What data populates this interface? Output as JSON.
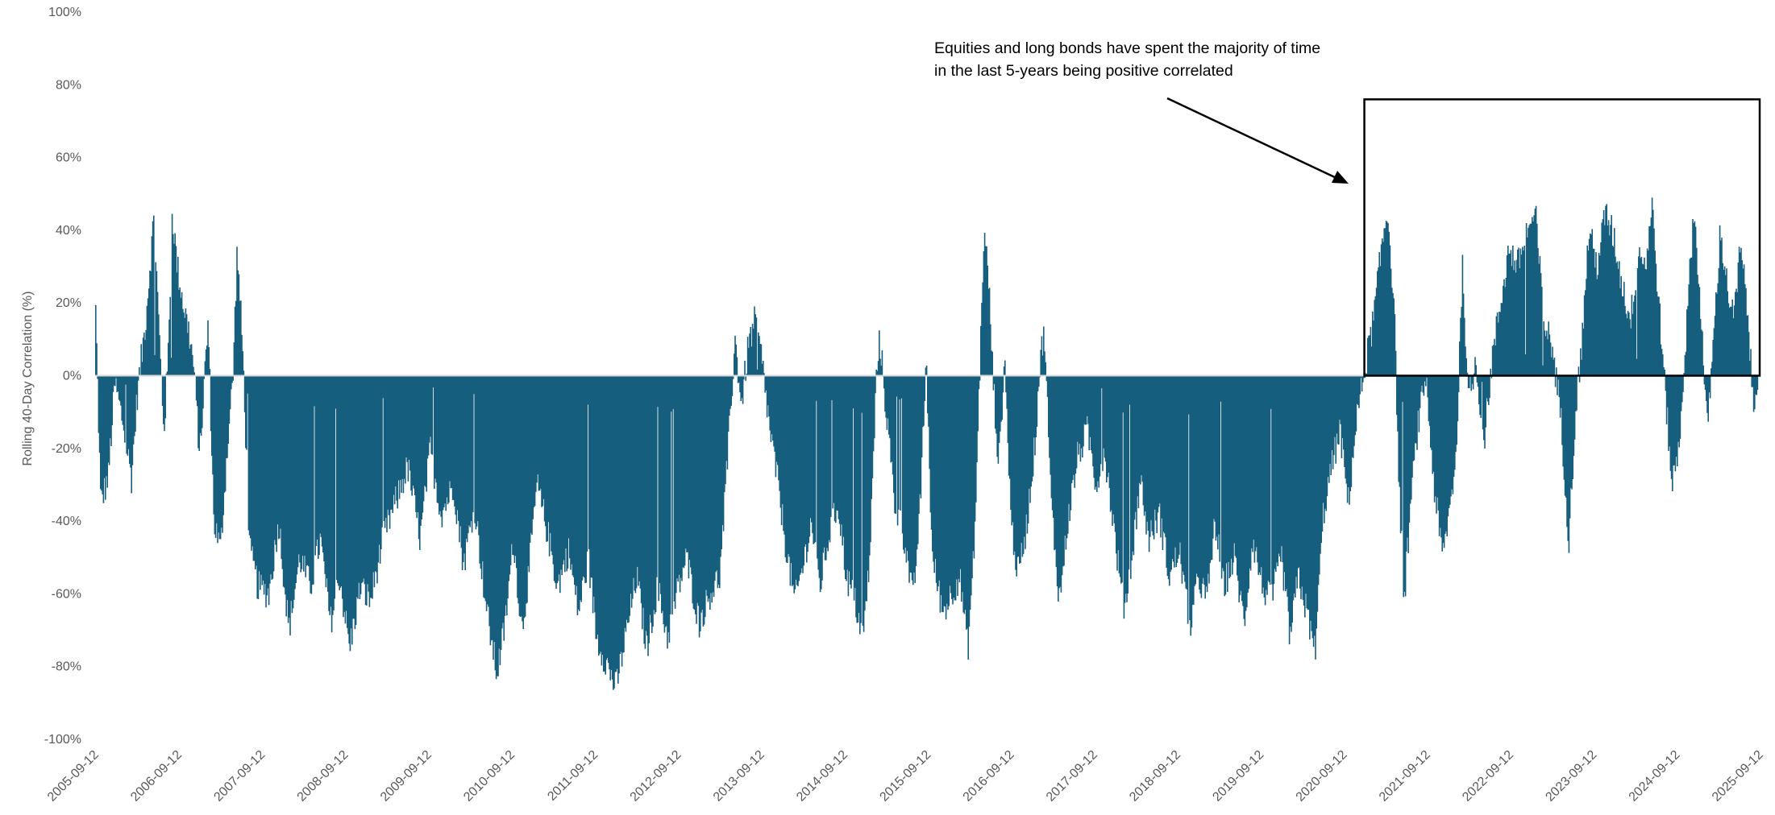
{
  "chart_data": {
    "type": "bar",
    "title": "",
    "xlabel": "",
    "ylabel": "Rolling 40-Day Correlation (%)",
    "ylim": [
      -100,
      100
    ],
    "yticks": [
      "100%",
      "80%",
      "60%",
      "40%",
      "20%",
      "0%",
      "-20%",
      "-40%",
      "-60%",
      "-80%",
      "-100%"
    ],
    "ytick_values": [
      100,
      80,
      60,
      40,
      20,
      0,
      -20,
      -40,
      -60,
      -80,
      -100
    ],
    "xticks": [
      "2005-09-12",
      "2006-09-12",
      "2007-09-12",
      "2008-09-12",
      "2009-09-12",
      "2010-09-12",
      "2011-09-12",
      "2012-09-12",
      "2013-09-12",
      "2014-09-12",
      "2015-09-12",
      "2016-09-12",
      "2017-09-12",
      "2018-09-12",
      "2019-09-12",
      "2020-09-12",
      "2021-09-12",
      "2022-09-12",
      "2023-09-12",
      "2024-09-12",
      "2025-09-12"
    ],
    "x_range": [
      2005.7,
      2025.7
    ],
    "bar_color": "#175E7E",
    "series": [
      {
        "name": "Rolling 40-Day Correlation",
        "points": [
          [
            2005.7,
            18
          ],
          [
            2005.76,
            -35
          ],
          [
            2005.85,
            -28
          ],
          [
            2005.93,
            -2
          ],
          [
            2006.02,
            -12
          ],
          [
            2006.13,
            -28
          ],
          [
            2006.2,
            -5
          ],
          [
            2006.3,
            15
          ],
          [
            2006.4,
            44
          ],
          [
            2006.47,
            8
          ],
          [
            2006.52,
            -15
          ],
          [
            2006.57,
            5
          ],
          [
            2006.62,
            45
          ],
          [
            2006.68,
            30
          ],
          [
            2006.75,
            20
          ],
          [
            2006.82,
            12
          ],
          [
            2006.88,
            2
          ],
          [
            2006.95,
            -22
          ],
          [
            2007.05,
            15
          ],
          [
            2007.12,
            -40
          ],
          [
            2007.2,
            -48
          ],
          [
            2007.28,
            -20
          ],
          [
            2007.35,
            0
          ],
          [
            2007.4,
            35
          ],
          [
            2007.47,
            5
          ],
          [
            2007.55,
            -48
          ],
          [
            2007.65,
            -58
          ],
          [
            2007.78,
            -60
          ],
          [
            2007.9,
            -40
          ],
          [
            2008.02,
            -70
          ],
          [
            2008.15,
            -50
          ],
          [
            2008.28,
            -58
          ],
          [
            2008.4,
            -45
          ],
          [
            2008.52,
            -68
          ],
          [
            2008.63,
            -55
          ],
          [
            2008.75,
            -75
          ],
          [
            2008.88,
            -58
          ],
          [
            2009.0,
            -62
          ],
          [
            2009.15,
            -45
          ],
          [
            2009.3,
            -35
          ],
          [
            2009.45,
            -25
          ],
          [
            2009.6,
            -45
          ],
          [
            2009.72,
            -20
          ],
          [
            2009.85,
            -38
          ],
          [
            2010.0,
            -30
          ],
          [
            2010.12,
            -52
          ],
          [
            2010.25,
            -35
          ],
          [
            2010.4,
            -65
          ],
          [
            2010.52,
            -82
          ],
          [
            2010.62,
            -68
          ],
          [
            2010.72,
            -45
          ],
          [
            2010.82,
            -70
          ],
          [
            2010.9,
            -55
          ],
          [
            2011.0,
            -30
          ],
          [
            2011.12,
            -42
          ],
          [
            2011.25,
            -58
          ],
          [
            2011.38,
            -48
          ],
          [
            2011.5,
            -65
          ],
          [
            2011.62,
            -50
          ],
          [
            2011.72,
            -72
          ],
          [
            2011.82,
            -78
          ],
          [
            2011.95,
            -86
          ],
          [
            2012.08,
            -70
          ],
          [
            2012.2,
            -55
          ],
          [
            2012.32,
            -75
          ],
          [
            2012.45,
            -58
          ],
          [
            2012.57,
            -72
          ],
          [
            2012.68,
            -60
          ],
          [
            2012.8,
            -50
          ],
          [
            2012.95,
            -68
          ],
          [
            2013.08,
            -60
          ],
          [
            2013.2,
            -55
          ],
          [
            2013.3,
            -20
          ],
          [
            2013.38,
            10
          ],
          [
            2013.46,
            -8
          ],
          [
            2013.54,
            8
          ],
          [
            2013.62,
            15
          ],
          [
            2013.7,
            5
          ],
          [
            2013.8,
            -15
          ],
          [
            2013.9,
            -30
          ],
          [
            2014.0,
            -48
          ],
          [
            2014.1,
            -62
          ],
          [
            2014.2,
            -52
          ],
          [
            2014.3,
            -40
          ],
          [
            2014.4,
            -58
          ],
          [
            2014.5,
            -45
          ],
          [
            2014.62,
            -35
          ],
          [
            2014.72,
            -55
          ],
          [
            2014.82,
            -62
          ],
          [
            2014.92,
            -72
          ],
          [
            2015.0,
            -50
          ],
          [
            2015.08,
            0
          ],
          [
            2015.12,
            10
          ],
          [
            2015.2,
            -10
          ],
          [
            2015.3,
            -35
          ],
          [
            2015.42,
            -45
          ],
          [
            2015.52,
            -62
          ],
          [
            2015.6,
            -38
          ],
          [
            2015.68,
            5
          ],
          [
            2015.75,
            -50
          ],
          [
            2015.88,
            -65
          ],
          [
            2015.98,
            -60
          ],
          [
            2016.08,
            -55
          ],
          [
            2016.18,
            -75
          ],
          [
            2016.26,
            -45
          ],
          [
            2016.32,
            0
          ],
          [
            2016.37,
            38
          ],
          [
            2016.42,
            30
          ],
          [
            2016.48,
            0
          ],
          [
            2016.55,
            -25
          ],
          [
            2016.62,
            5
          ],
          [
            2016.7,
            -40
          ],
          [
            2016.78,
            -55
          ],
          [
            2016.88,
            -42
          ],
          [
            2016.98,
            -20
          ],
          [
            2017.05,
            5
          ],
          [
            2017.1,
            12
          ],
          [
            2017.18,
            -35
          ],
          [
            2017.28,
            -62
          ],
          [
            2017.38,
            -40
          ],
          [
            2017.5,
            -22
          ],
          [
            2017.62,
            -15
          ],
          [
            2017.72,
            -30
          ],
          [
            2017.82,
            -20
          ],
          [
            2017.95,
            -45
          ],
          [
            2018.05,
            -65
          ],
          [
            2018.15,
            -50
          ],
          [
            2018.25,
            -28
          ],
          [
            2018.35,
            -45
          ],
          [
            2018.48,
            -38
          ],
          [
            2018.6,
            -55
          ],
          [
            2018.72,
            -48
          ],
          [
            2018.85,
            -70
          ],
          [
            2018.95,
            -55
          ],
          [
            2019.05,
            -62
          ],
          [
            2019.15,
            -40
          ],
          [
            2019.25,
            -58
          ],
          [
            2019.38,
            -50
          ],
          [
            2019.5,
            -68
          ],
          [
            2019.6,
            -45
          ],
          [
            2019.72,
            -58
          ],
          [
            2019.82,
            -62
          ],
          [
            2019.95,
            -50
          ],
          [
            2020.05,
            -72
          ],
          [
            2020.15,
            -55
          ],
          [
            2020.25,
            -65
          ],
          [
            2020.35,
            -76
          ],
          [
            2020.45,
            -38
          ],
          [
            2020.55,
            -25
          ],
          [
            2020.65,
            -15
          ],
          [
            2020.75,
            -35
          ],
          [
            2020.85,
            -12
          ],
          [
            2020.95,
            2
          ],
          [
            2021.05,
            15
          ],
          [
            2021.15,
            35
          ],
          [
            2021.22,
            46
          ],
          [
            2021.3,
            20
          ],
          [
            2021.36,
            -30
          ],
          [
            2021.42,
            -62
          ],
          [
            2021.5,
            -35
          ],
          [
            2021.58,
            -15
          ],
          [
            2021.68,
            0
          ],
          [
            2021.78,
            -30
          ],
          [
            2021.88,
            -50
          ],
          [
            2021.98,
            -35
          ],
          [
            2022.05,
            -20
          ],
          [
            2022.12,
            30
          ],
          [
            2022.2,
            -8
          ],
          [
            2022.28,
            5
          ],
          [
            2022.38,
            -18
          ],
          [
            2022.48,
            5
          ],
          [
            2022.58,
            20
          ],
          [
            2022.68,
            35
          ],
          [
            2022.78,
            30
          ],
          [
            2022.9,
            40
          ],
          [
            2023.0,
            44
          ],
          [
            2023.1,
            15
          ],
          [
            2023.2,
            8
          ],
          [
            2023.3,
            -10
          ],
          [
            2023.4,
            -45
          ],
          [
            2023.48,
            -10
          ],
          [
            2023.56,
            10
          ],
          [
            2023.64,
            40
          ],
          [
            2023.74,
            30
          ],
          [
            2023.84,
            45
          ],
          [
            2023.94,
            38
          ],
          [
            2024.04,
            25
          ],
          [
            2024.14,
            15
          ],
          [
            2024.24,
            35
          ],
          [
            2024.32,
            30
          ],
          [
            2024.4,
            47
          ],
          [
            2024.48,
            20
          ],
          [
            2024.56,
            -5
          ],
          [
            2024.64,
            -30
          ],
          [
            2024.72,
            -20
          ],
          [
            2024.82,
            15
          ],
          [
            2024.9,
            46
          ],
          [
            2024.98,
            20
          ],
          [
            2025.06,
            -15
          ],
          [
            2025.14,
            10
          ],
          [
            2025.22,
            40
          ],
          [
            2025.3,
            25
          ],
          [
            2025.38,
            15
          ],
          [
            2025.46,
            35
          ],
          [
            2025.54,
            20
          ],
          [
            2025.62,
            -10
          ],
          [
            2025.7,
            8
          ]
        ]
      }
    ],
    "annotations": [
      {
        "text_lines": [
          "Equities and long bonds have spent the majority of time",
          "in the last 5-years being positive correlated"
        ],
        "box_x_range": [
          2020.95,
          2025.7
        ],
        "box_y_range": [
          0,
          76
        ]
      }
    ]
  }
}
